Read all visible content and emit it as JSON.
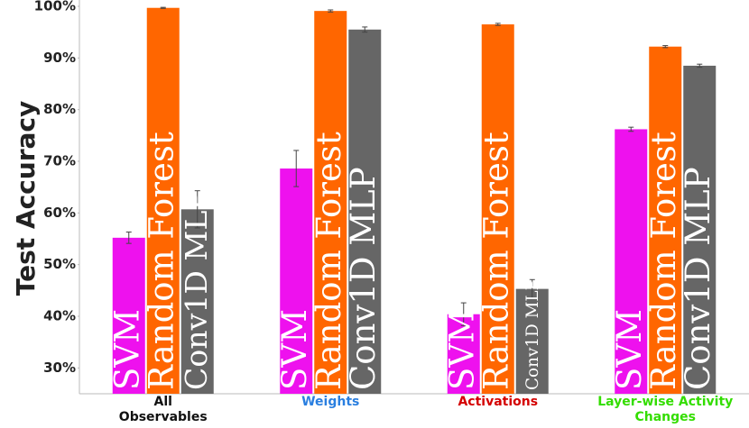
{
  "chart_data": {
    "type": "bar",
    "ylabel": "Test Accuracy",
    "categories": [
      "All\nObservables",
      "Weights",
      "Activations",
      "Layer-wise Activity\nChanges"
    ],
    "category_colors": [
      "#111111",
      "#2a7fe0",
      "#d40000",
      "#33dd00"
    ],
    "series": [
      {
        "name": "SVM",
        "color": "#ee11ee",
        "values": [
          55.2,
          68.6,
          40.4,
          76.2
        ],
        "errors": [
          1.1,
          3.5,
          2.2,
          0.4
        ]
      },
      {
        "name": "Random Forest",
        "color": "#ff6600",
        "values": [
          99.7,
          99.1,
          96.5,
          92.2
        ],
        "errors": [
          0.1,
          0.2,
          0.2,
          0.2
        ]
      },
      {
        "name": "Conv1D MLP",
        "color": "#666666",
        "values": [
          60.7,
          95.5,
          45.3,
          88.5
        ],
        "errors": [
          3.6,
          0.5,
          1.8,
          0.3
        ]
      }
    ],
    "ylim": [
      25,
      100
    ],
    "yticks": [
      {
        "value": 30,
        "label": "30%"
      },
      {
        "value": 40,
        "label": "40%"
      },
      {
        "value": 50,
        "label": "50%"
      },
      {
        "value": 60,
        "label": "60%"
      },
      {
        "value": 70,
        "label": "70%"
      },
      {
        "value": 80,
        "label": "80%"
      },
      {
        "value": 90,
        "label": "90%"
      },
      {
        "value": 100,
        "label": "100%"
      }
    ]
  }
}
